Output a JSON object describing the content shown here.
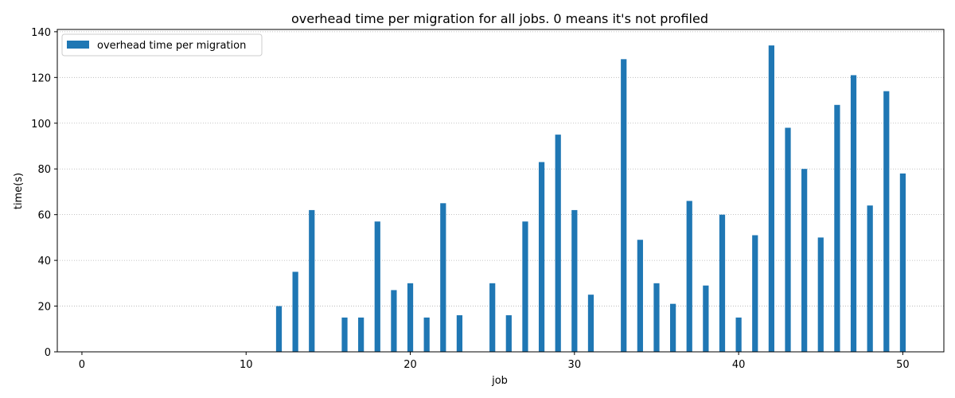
{
  "chart_data": {
    "type": "bar",
    "title": "overhead time per migration for all jobs. 0 means it's not profiled",
    "xlabel": "job",
    "ylabel": "time(s)",
    "xlim": [
      -1.5,
      52.5
    ],
    "ylim": [
      0,
      141
    ],
    "xticks": [
      0,
      10,
      20,
      30,
      40,
      50
    ],
    "yticks": [
      0,
      20,
      40,
      60,
      80,
      100,
      120,
      140
    ],
    "grid": "y, dotted",
    "legend_position": "upper-left",
    "series": [
      {
        "name": "overhead time per migration",
        "color": "#1f77b4",
        "x": [
          0,
          1,
          2,
          3,
          4,
          5,
          6,
          7,
          8,
          9,
          10,
          11,
          12,
          13,
          14,
          15,
          16,
          17,
          18,
          19,
          20,
          21,
          22,
          23,
          24,
          25,
          26,
          27,
          28,
          29,
          30,
          31,
          32,
          33,
          34,
          35,
          36,
          37,
          38,
          39,
          40,
          41,
          42,
          43,
          44,
          45,
          46,
          47,
          48,
          49,
          50
        ],
        "values": [
          0,
          0,
          0,
          0,
          0,
          0,
          0,
          0,
          0,
          0,
          0,
          0,
          20,
          35,
          62,
          0,
          15,
          15,
          57,
          27,
          30,
          15,
          65,
          16,
          0,
          30,
          16,
          57,
          83,
          95,
          62,
          25,
          0,
          128,
          49,
          30,
          21,
          66,
          29,
          60,
          15,
          51,
          134,
          98,
          80,
          50,
          108,
          121,
          64,
          114,
          78
        ]
      }
    ]
  }
}
